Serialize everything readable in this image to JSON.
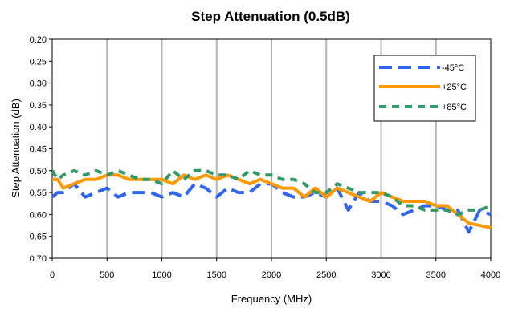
{
  "chart_data": {
    "type": "line",
    "title": "Step Attenuation (0.5dB)",
    "xlabel": "Frequency (MHz)",
    "ylabel": "Step Attenuation (dB)",
    "xlim": [
      0,
      4000
    ],
    "ylim": [
      0.2,
      0.7
    ],
    "y_inverted": true,
    "x_ticks": [
      "0",
      "500",
      "1000",
      "1500",
      "2000",
      "2500",
      "3000",
      "3500",
      "4000"
    ],
    "y_ticks": [
      "0.20",
      "0.25",
      "0.30",
      "0.35",
      "0.40",
      "0.45",
      "0.50",
      "0.55",
      "0.60",
      "0.65",
      "0.70"
    ],
    "grid": "vertical",
    "legend_position": "top-right",
    "series": [
      {
        "name": "-45°C",
        "color": "#3366ee",
        "style": "dashed",
        "x": [
          0,
          50,
          100,
          200,
          300,
          400,
          500,
          600,
          700,
          800,
          900,
          1000,
          1100,
          1200,
          1300,
          1400,
          1500,
          1600,
          1700,
          1800,
          1900,
          2000,
          2100,
          2200,
          2300,
          2400,
          2500,
          2600,
          2700,
          2800,
          2900,
          3000,
          3100,
          3200,
          3300,
          3400,
          3500,
          3600,
          3700,
          3800,
          3900,
          4000
        ],
        "values": [
          0.56,
          0.55,
          0.55,
          0.53,
          0.56,
          0.55,
          0.54,
          0.56,
          0.55,
          0.55,
          0.55,
          0.56,
          0.55,
          0.56,
          0.53,
          0.54,
          0.56,
          0.54,
          0.55,
          0.55,
          0.53,
          0.53,
          0.55,
          0.56,
          0.56,
          0.55,
          0.56,
          0.54,
          0.59,
          0.55,
          0.57,
          0.57,
          0.58,
          0.6,
          0.59,
          0.58,
          0.58,
          0.59,
          0.59,
          0.64,
          0.59,
          0.6
        ]
      },
      {
        "name": "+25°C",
        "color": "#ff9900",
        "style": "solid",
        "x": [
          0,
          50,
          100,
          200,
          300,
          400,
          500,
          600,
          700,
          800,
          900,
          1000,
          1100,
          1200,
          1300,
          1400,
          1500,
          1600,
          1700,
          1800,
          1900,
          2000,
          2100,
          2200,
          2300,
          2400,
          2500,
          2600,
          2700,
          2800,
          2900,
          3000,
          3100,
          3200,
          3300,
          3400,
          3500,
          3600,
          3700,
          3800,
          3900,
          4000
        ],
        "values": [
          0.52,
          0.52,
          0.54,
          0.53,
          0.52,
          0.52,
          0.51,
          0.51,
          0.52,
          0.52,
          0.52,
          0.52,
          0.53,
          0.51,
          0.52,
          0.51,
          0.52,
          0.51,
          0.52,
          0.53,
          0.52,
          0.53,
          0.54,
          0.54,
          0.56,
          0.54,
          0.56,
          0.54,
          0.55,
          0.56,
          0.57,
          0.55,
          0.56,
          0.57,
          0.57,
          0.57,
          0.58,
          0.58,
          0.6,
          0.62,
          0.625,
          0.63
        ]
      },
      {
        "name": "+85°C",
        "color": "#339966",
        "style": "dashed",
        "x": [
          0,
          50,
          100,
          200,
          300,
          400,
          500,
          600,
          700,
          800,
          900,
          1000,
          1100,
          1200,
          1300,
          1400,
          1500,
          1600,
          1700,
          1800,
          1900,
          2000,
          2100,
          2200,
          2300,
          2400,
          2500,
          2600,
          2700,
          2800,
          2900,
          3000,
          3100,
          3200,
          3300,
          3400,
          3500,
          3600,
          3700,
          3800,
          3900,
          4000
        ],
        "values": [
          0.5,
          0.52,
          0.51,
          0.5,
          0.51,
          0.5,
          0.51,
          0.5,
          0.51,
          0.52,
          0.52,
          0.53,
          0.5,
          0.52,
          0.5,
          0.5,
          0.51,
          0.51,
          0.52,
          0.5,
          0.51,
          0.51,
          0.52,
          0.52,
          0.53,
          0.55,
          0.55,
          0.53,
          0.54,
          0.55,
          0.55,
          0.55,
          0.56,
          0.58,
          0.58,
          0.59,
          0.59,
          0.59,
          0.6,
          0.59,
          0.59,
          0.58
        ]
      }
    ]
  }
}
